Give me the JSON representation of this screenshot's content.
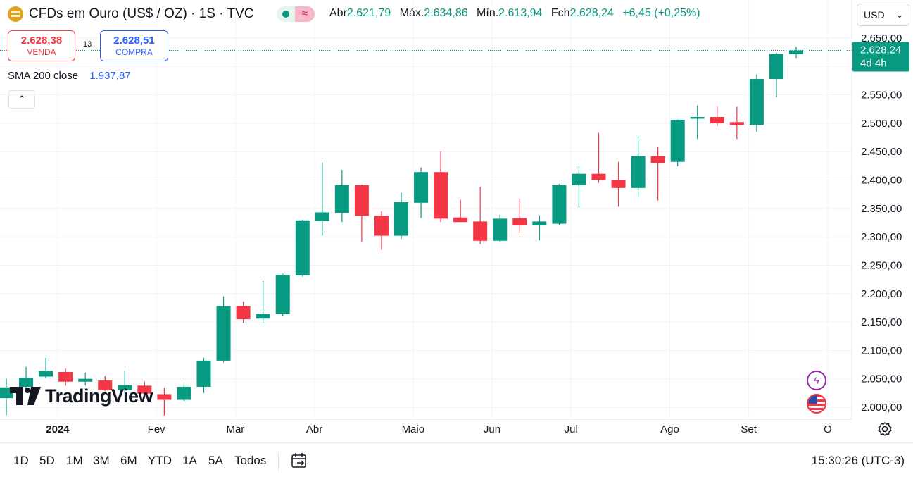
{
  "header": {
    "symbol_icon": "gold-bars-icon",
    "title": "CFDs em Ouro (US$ / OZ) · 1S · TVC",
    "ohlc": {
      "open_label": "Abr",
      "open_value": "2.621,79",
      "high_label": "Máx.",
      "high_value": "2.634,86",
      "low_label": "Mín.",
      "low_value": "2.613,94",
      "close_label": "Fch",
      "close_value": "2.628,24",
      "change_value": "+6,45 (+0,25%)"
    }
  },
  "currency": {
    "selected": "USD"
  },
  "trade": {
    "sell_price": "2.628,38",
    "sell_label": "VENDA",
    "spread": "13",
    "buy_price": "2.628,51",
    "buy_label": "COMPRA"
  },
  "indicator": {
    "label": "SMA 200 close",
    "value": "1.937,87"
  },
  "price_tag": {
    "value": "2.628,24",
    "countdown": "4d 4h"
  },
  "logo": {
    "text": "TradingView"
  },
  "bottom_bar": {
    "ranges": [
      "1D",
      "5D",
      "1M",
      "3M",
      "6M",
      "YTD",
      "1A",
      "5A",
      "Todos"
    ],
    "clock": "15:30:26 (UTC-3)"
  },
  "colors": {
    "up": "#089981",
    "down": "#f23645",
    "grid": "#f0f3fa",
    "text": "#131722"
  },
  "chart_data": {
    "type": "candlestick",
    "ylim": [
      1985,
      2660
    ],
    "y_ticks": [
      2000,
      2050,
      2100,
      2150,
      2200,
      2250,
      2300,
      2350,
      2400,
      2450,
      2500,
      2550,
      2600,
      2650
    ],
    "y_tick_labels": [
      "2.000,00",
      "2.050,00",
      "2.100,00",
      "2.150,00",
      "2.200,00",
      "2.250,00",
      "2.300,00",
      "2.350,00",
      "2.400,00",
      "2.450,00",
      "2.500,00",
      "2.550,00",
      "2.600,00",
      "2.650,00"
    ],
    "x_labels": [
      {
        "label": "2024",
        "index": 2.6
      },
      {
        "label": "Fev",
        "index": 7.6
      },
      {
        "label": "Mar",
        "index": 11.6
      },
      {
        "label": "Abr",
        "index": 15.6
      },
      {
        "label": "Maio",
        "index": 20.6
      },
      {
        "label": "Jun",
        "index": 24.6
      },
      {
        "label": "Jul",
        "index": 28.6
      },
      {
        "label": "Ago",
        "index": 33.6
      },
      {
        "label": "Set",
        "index": 37.6
      },
      {
        "label": "O",
        "index": 41.6
      }
    ],
    "candles": [
      {
        "o": 2016,
        "h": 2050,
        "l": 1986,
        "c": 2035
      },
      {
        "o": 2036,
        "h": 2071,
        "l": 2031,
        "c": 2052
      },
      {
        "o": 2054,
        "h": 2087,
        "l": 2051,
        "c": 2064
      },
      {
        "o": 2062,
        "h": 2068,
        "l": 2038,
        "c": 2045
      },
      {
        "o": 2045,
        "h": 2061,
        "l": 2038,
        "c": 2050
      },
      {
        "o": 2047,
        "h": 2055,
        "l": 2028,
        "c": 2030
      },
      {
        "o": 2030,
        "h": 2065,
        "l": 2025,
        "c": 2039
      },
      {
        "o": 2038,
        "h": 2045,
        "l": 2018,
        "c": 2024
      },
      {
        "o": 2023,
        "h": 2034,
        "l": 1985,
        "c": 2013
      },
      {
        "o": 2013,
        "h": 2043,
        "l": 2011,
        "c": 2036
      },
      {
        "o": 2036,
        "h": 2087,
        "l": 2025,
        "c": 2082
      },
      {
        "o": 2082,
        "h": 2195,
        "l": 2079,
        "c": 2178
      },
      {
        "o": 2178,
        "h": 2186,
        "l": 2148,
        "c": 2155
      },
      {
        "o": 2156,
        "h": 2222,
        "l": 2148,
        "c": 2164
      },
      {
        "o": 2164,
        "h": 2235,
        "l": 2161,
        "c": 2233
      },
      {
        "o": 2232,
        "h": 2330,
        "l": 2230,
        "c": 2329
      },
      {
        "o": 2328,
        "h": 2431,
        "l": 2302,
        "c": 2343
      },
      {
        "o": 2342,
        "h": 2418,
        "l": 2326,
        "c": 2391
      },
      {
        "o": 2391,
        "h": 2392,
        "l": 2291,
        "c": 2337
      },
      {
        "o": 2337,
        "h": 2345,
        "l": 2277,
        "c": 2302
      },
      {
        "o": 2302,
        "h": 2378,
        "l": 2296,
        "c": 2361
      },
      {
        "o": 2360,
        "h": 2422,
        "l": 2333,
        "c": 2414
      },
      {
        "o": 2414,
        "h": 2450,
        "l": 2326,
        "c": 2332
      },
      {
        "o": 2334,
        "h": 2365,
        "l": 2326,
        "c": 2326
      },
      {
        "o": 2327,
        "h": 2388,
        "l": 2287,
        "c": 2293
      },
      {
        "o": 2293,
        "h": 2339,
        "l": 2291,
        "c": 2332
      },
      {
        "o": 2333,
        "h": 2368,
        "l": 2307,
        "c": 2320
      },
      {
        "o": 2320,
        "h": 2338,
        "l": 2294,
        "c": 2327
      },
      {
        "o": 2323,
        "h": 2393,
        "l": 2320,
        "c": 2391
      },
      {
        "o": 2391,
        "h": 2424,
        "l": 2351,
        "c": 2411
      },
      {
        "o": 2411,
        "h": 2483,
        "l": 2395,
        "c": 2400
      },
      {
        "o": 2400,
        "h": 2432,
        "l": 2353,
        "c": 2386
      },
      {
        "o": 2386,
        "h": 2477,
        "l": 2370,
        "c": 2442
      },
      {
        "o": 2442,
        "h": 2459,
        "l": 2364,
        "c": 2430
      },
      {
        "o": 2432,
        "h": 2507,
        "l": 2424,
        "c": 2506
      },
      {
        "o": 2508,
        "h": 2531,
        "l": 2472,
        "c": 2511
      },
      {
        "o": 2511,
        "h": 2529,
        "l": 2495,
        "c": 2500
      },
      {
        "o": 2502,
        "h": 2529,
        "l": 2472,
        "c": 2497
      },
      {
        "o": 2497,
        "h": 2586,
        "l": 2485,
        "c": 2578
      },
      {
        "o": 2578,
        "h": 2624,
        "l": 2546,
        "c": 2622
      },
      {
        "o": 2621.79,
        "h": 2634.86,
        "l": 2613.94,
        "c": 2628.24
      }
    ]
  }
}
